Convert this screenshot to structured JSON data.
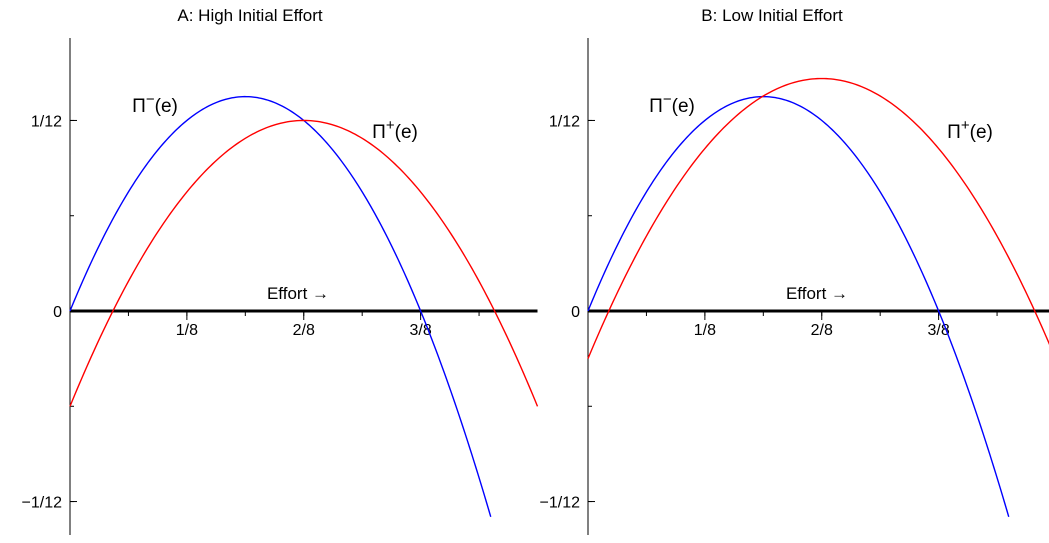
{
  "chart_data": [
    {
      "type": "line",
      "title": "A: High Initial Effort",
      "xlabel": "Effort →",
      "ylabel": "",
      "xlim": [
        0,
        0.5
      ],
      "ylim": [
        -0.0972,
        0.1417
      ],
      "xticks": [
        {
          "value": 0.125,
          "label": "1/8"
        },
        {
          "value": 0.25,
          "label": "2/8"
        },
        {
          "value": 0.375,
          "label": "3/8"
        }
      ],
      "yticks": [
        {
          "value": -0.08333,
          "label": "−1/12"
        },
        {
          "value": 0,
          "label": "0"
        },
        {
          "value": 0.08333,
          "label": "1/12"
        }
      ],
      "series": [
        {
          "name": "Π",
          "sup": "−",
          "arg": "(e)",
          "color": "#0000ff",
          "x_range": [
            0,
            0.45
          ],
          "points": [
            [
              0,
              0
            ],
            [
              0.1875,
              0.09375
            ],
            [
              0.375,
              0
            ]
          ]
        },
        {
          "name": "Π",
          "sup": "+",
          "arg": "(e)",
          "color": "#ff0000",
          "x_range": [
            0,
            0.5
          ],
          "points": [
            [
              0,
              -0.0417
            ],
            [
              0.25,
              0.08333
            ],
            [
              0.5,
              -0.0417
            ]
          ]
        }
      ]
    },
    {
      "type": "line",
      "title": "B: Low Initial Effort",
      "xlabel": "Effort →",
      "ylabel": "",
      "xlim": [
        0,
        0.5
      ],
      "ylim": [
        -0.0972,
        0.1417
      ],
      "xticks": [
        {
          "value": 0.125,
          "label": "1/8"
        },
        {
          "value": 0.25,
          "label": "2/8"
        },
        {
          "value": 0.375,
          "label": "3/8"
        }
      ],
      "yticks": [
        {
          "value": -0.08333,
          "label": "−1/12"
        },
        {
          "value": 0,
          "label": "0"
        },
        {
          "value": 0.08333,
          "label": "1/12"
        }
      ],
      "series": [
        {
          "name": "Π",
          "sup": "−",
          "arg": "(e)",
          "color": "#0000ff",
          "x_range": [
            0,
            0.45
          ],
          "points": [
            [
              0,
              0
            ],
            [
              0.1875,
              0.09375
            ],
            [
              0.375,
              0
            ]
          ]
        },
        {
          "name": "Π",
          "sup": "+",
          "arg": "(e)",
          "color": "#ff0000",
          "x_range": [
            0,
            0.5
          ],
          "points": [
            [
              0,
              -0.0208
            ],
            [
              0.25,
              0.10167
            ],
            [
              0.5,
              -0.0208
            ]
          ]
        }
      ]
    }
  ]
}
